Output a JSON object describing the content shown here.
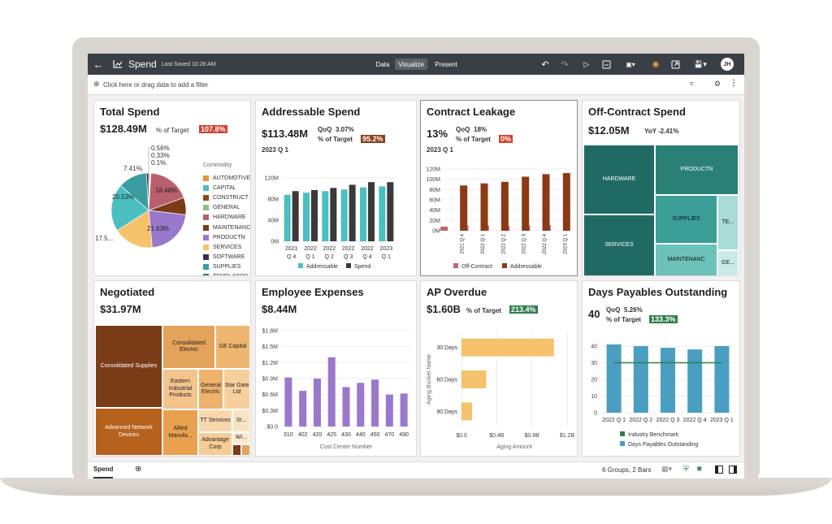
{
  "app": {
    "title": "Spend",
    "saved": "Last Saved 10:26 AM",
    "tabs": [
      "Data",
      "Visualize",
      "Present"
    ],
    "active_tab": "Visualize",
    "avatar": "JH",
    "filter_placeholder": "Click here or drag data to add a filter"
  },
  "bottom": {
    "sheet_tab": "Spend",
    "status": "6 Groups, 2 Bars"
  },
  "cards": {
    "total_spend": {
      "title": "Total Spend",
      "value": "$128.49M",
      "target_label": "% of Target",
      "target_value": "107.8%",
      "legend_title": "Commodity",
      "legend": [
        "AUTOMOTIVE",
        "CAPITAL",
        "CONSTRUCT",
        "GENERAL",
        "HARDWARE",
        "MAINTENANC",
        "PRODUCTN",
        "SERVICES",
        "SOFTWARE",
        "SUPPLIES",
        "TEMPLABOR"
      ],
      "colors": [
        "#e8943a",
        "#4bbfc2",
        "#8a4a1e",
        "#8ec47a",
        "#b9606c",
        "#7a3c17",
        "#9a78cc",
        "#f6c26b",
        "#3f2a4f",
        "#3a9ea0",
        "#2e7d5a"
      ],
      "slice_labels": [
        "0.56%",
        "0.33%",
        "0.1%",
        "7.41%",
        "20.53%",
        "18.48%",
        "21.63%",
        "17.5..."
      ]
    },
    "addressable": {
      "title": "Addressable Spend",
      "value": "$113.48M",
      "qoq_label": "QoQ",
      "qoq_value": "3.07%",
      "target_label": "% of Target",
      "target_value": "95.2%",
      "period": "2023 Q 1"
    },
    "leakage": {
      "title": "Contract Leakage",
      "value": "13%",
      "qoq_label": "QoQ",
      "qoq_value": "18%",
      "target_label": "% of Target",
      "target_value": "0%",
      "period": "2023 Q 1"
    },
    "off_contract": {
      "title": "Off-Contract Spend",
      "value": "$12.05M",
      "yoy_label": "YoY",
      "yoy_value": "-2.41%",
      "cells": [
        "HARDWARE",
        "PRODUCTN",
        "SERVICES",
        "SUPPLIES",
        "TE...",
        "MAINTENANC",
        "GE..."
      ]
    },
    "negotiated": {
      "title": "Negotiated",
      "value": "$31.97M",
      "cells": [
        "Consolidated Supplies",
        "Advanced Network Devices",
        "Consolidated Electric",
        "GE Capital",
        "Eastern Industrial Products",
        "General Electric",
        "Star Gate Ltd",
        "Allied Manufa...",
        "TT Services",
        "St...",
        "Advantage Corp",
        "Wi..."
      ]
    },
    "employee": {
      "title": "Employee Expenses",
      "value": "$8.44M"
    },
    "ap_overdue": {
      "title": "AP Overdue",
      "value": "$1.60B",
      "target_label": "% of Target",
      "target_value": "213.4%"
    },
    "dpo": {
      "title": "Days Payables Outstanding",
      "value": "40",
      "qoq_label": "QoQ",
      "qoq_value": "5.26%",
      "target_label": "% of Target",
      "target_value": "133.3%"
    }
  },
  "colors": {
    "badge_red": "#d0402e",
    "badge_brown": "#8c3a16",
    "badge_green": "#2e7d4a",
    "topbar": "#3a3f45"
  },
  "chart_data": [
    {
      "type": "pie",
      "title": "Total Spend",
      "categories": [
        "AUTOMOTIVE",
        "CAPITAL",
        "CONSTRUCT",
        "GENERAL",
        "HARDWARE",
        "MAINTENANC",
        "PRODUCTN",
        "SERVICES",
        "SOFTWARE",
        "SUPPLIES",
        "TEMPLABOR"
      ],
      "values": [
        0.56,
        20.53,
        0.33,
        0.1,
        18.48,
        7.41,
        21.63,
        17.5,
        0.5,
        12.5,
        0.46
      ],
      "legend_title": "Commodity"
    },
    {
      "type": "bar",
      "title": "Addressable Spend",
      "categories": [
        "2021 Q 4",
        "2022 Q 1",
        "2022 Q 2",
        "2022 Q 3",
        "2022 Q 4",
        "2023 Q 1"
      ],
      "tick_labels": [
        [
          "2021",
          "Q 4"
        ],
        [
          "2022",
          "Q 1"
        ],
        [
          "2022",
          "Q 2"
        ],
        [
          "2022",
          "Q 3"
        ],
        [
          "2022",
          "Q 4"
        ],
        [
          "2023",
          "Q 1"
        ]
      ],
      "series": [
        {
          "name": "Addressable",
          "color": "#4bbfc2",
          "values": [
            88,
            92,
            95,
            98,
            102,
            104
          ]
        },
        {
          "name": "Spend",
          "color": "#3a3a3a",
          "values": [
            95,
            97,
            101,
            107,
            112,
            112
          ]
        }
      ],
      "ylim": [
        0,
        120
      ],
      "yticks": [
        "0M",
        "40M",
        "80M",
        "120M"
      ]
    },
    {
      "type": "bar",
      "title": "Contract Leakage",
      "categories": [
        "2021 Q 4",
        "2022 Q 1",
        "2022 Q 2",
        "2022 Q 3",
        "2022 Q 4",
        "2023 Q 1"
      ],
      "series": [
        {
          "name": "Off-Contract",
          "color": "#c2656f",
          "values": [
            8,
            10,
            10,
            9,
            10,
            11
          ]
        },
        {
          "name": "Addressable",
          "color": "#8c3a16",
          "values": [
            88,
            92,
            95,
            105,
            110,
            112
          ]
        }
      ],
      "ylim": [
        0,
        120
      ],
      "yticks": [
        "0M",
        "20M",
        "40M",
        "60M",
        "80M",
        "100M",
        "120M"
      ]
    },
    {
      "type": "bar",
      "title": "Employee Expenses",
      "xlabel": "Cost Center Number",
      "categories": [
        "310",
        "402",
        "420",
        "425",
        "430",
        "440",
        "450",
        "470",
        "490"
      ],
      "series": [
        {
          "name": "Employee Expenses",
          "color": "#9a78cc",
          "values": [
            0.92,
            0.67,
            0.9,
            1.3,
            0.74,
            0.82,
            0.88,
            0.6,
            0.62
          ]
        }
      ],
      "ylim": [
        0,
        1.8
      ],
      "yticks": [
        "$0.0",
        "$0.3M",
        "$0.6M",
        "$0.9M",
        "$1.2M",
        "$1.5M",
        "$1.8M"
      ]
    },
    {
      "type": "bar",
      "title": "AP Overdue",
      "orientation": "horizontal",
      "xlabel": "Aging Amount",
      "ylabel": "Aging Bucket Name",
      "categories": [
        "30 Days",
        "60 Days",
        "90 Days"
      ],
      "series": [
        {
          "name": "Aging Amount",
          "color": "#f6c26b",
          "values": [
            1.05,
            0.28,
            0.12
          ]
        }
      ],
      "xlim": [
        0,
        1.2
      ],
      "xticks": [
        "$0.0",
        "$0.4B",
        "$0.8B",
        "$1.2B"
      ]
    },
    {
      "type": "bar",
      "title": "Days Payables Outstanding",
      "categories": [
        "2022 Q 1",
        "2022 Q 2",
        "2022 Q 3",
        "2022 Q 4",
        "2023 Q 1"
      ],
      "series": [
        {
          "name": "Days Payables Outstanding",
          "color": "#4a9ec2",
          "values": [
            41,
            40,
            39,
            38,
            40
          ]
        },
        {
          "name": "Industry Benchmark",
          "color": "#2e7d4a",
          "values": [
            30,
            30,
            30,
            30,
            30
          ]
        }
      ],
      "ylim": [
        0,
        40
      ],
      "yticks": [
        "0",
        "10",
        "20",
        "30",
        "40"
      ]
    }
  ]
}
